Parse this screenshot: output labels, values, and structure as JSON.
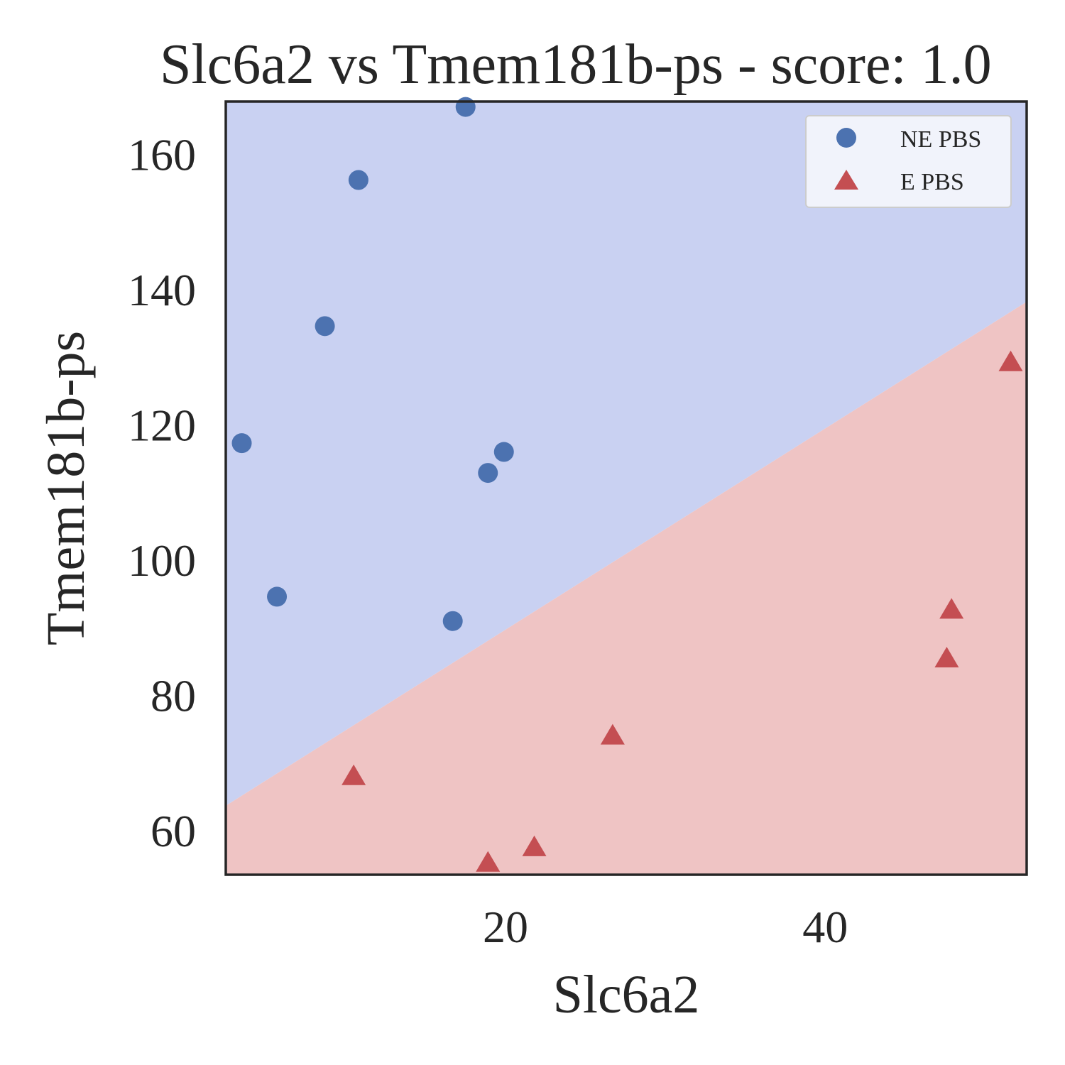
{
  "chart_data": {
    "type": "scatter",
    "title": "Slc6a2 vs Tmem181b-ps - score: 1.0",
    "xlabel": "Slc6a2",
    "ylabel": "Tmem181b-ps",
    "xlim": [
      2.5,
      52.6
    ],
    "ylim": [
      53.4,
      167.7
    ],
    "xticks": [
      20,
      40
    ],
    "yticks": [
      60,
      80,
      100,
      120,
      140,
      160
    ],
    "grid": false,
    "legend_position": "top-right",
    "decision_boundary": {
      "description": "linear",
      "points": [
        [
          2.5,
          63.6
        ],
        [
          52.6,
          138.1
        ]
      ],
      "upper_region": "NE PBS",
      "lower_region": "E PBS"
    },
    "colors": {
      "upper_region": "#c9d1f2",
      "lower_region": "#efc4c4",
      "ne_marker": "#4c72b0",
      "e_marker": "#c44e52",
      "frame": "#262626",
      "text": "#262626"
    },
    "series": [
      {
        "name": "NE PBS",
        "marker": "circle",
        "points": [
          [
            3.5,
            117.2
          ],
          [
            5.7,
            94.5
          ],
          [
            8.7,
            134.5
          ],
          [
            10.8,
            156.1
          ],
          [
            16.7,
            90.9
          ],
          [
            17.5,
            166.9
          ],
          [
            18.9,
            112.8
          ],
          [
            19.9,
            115.9
          ]
        ]
      },
      {
        "name": "E PBS",
        "marker": "triangle",
        "points": [
          [
            10.5,
            67.8
          ],
          [
            18.9,
            55.0
          ],
          [
            21.8,
            57.3
          ],
          [
            26.7,
            73.8
          ],
          [
            47.6,
            85.2
          ],
          [
            47.9,
            92.4
          ],
          [
            51.6,
            129.0
          ]
        ]
      }
    ]
  }
}
